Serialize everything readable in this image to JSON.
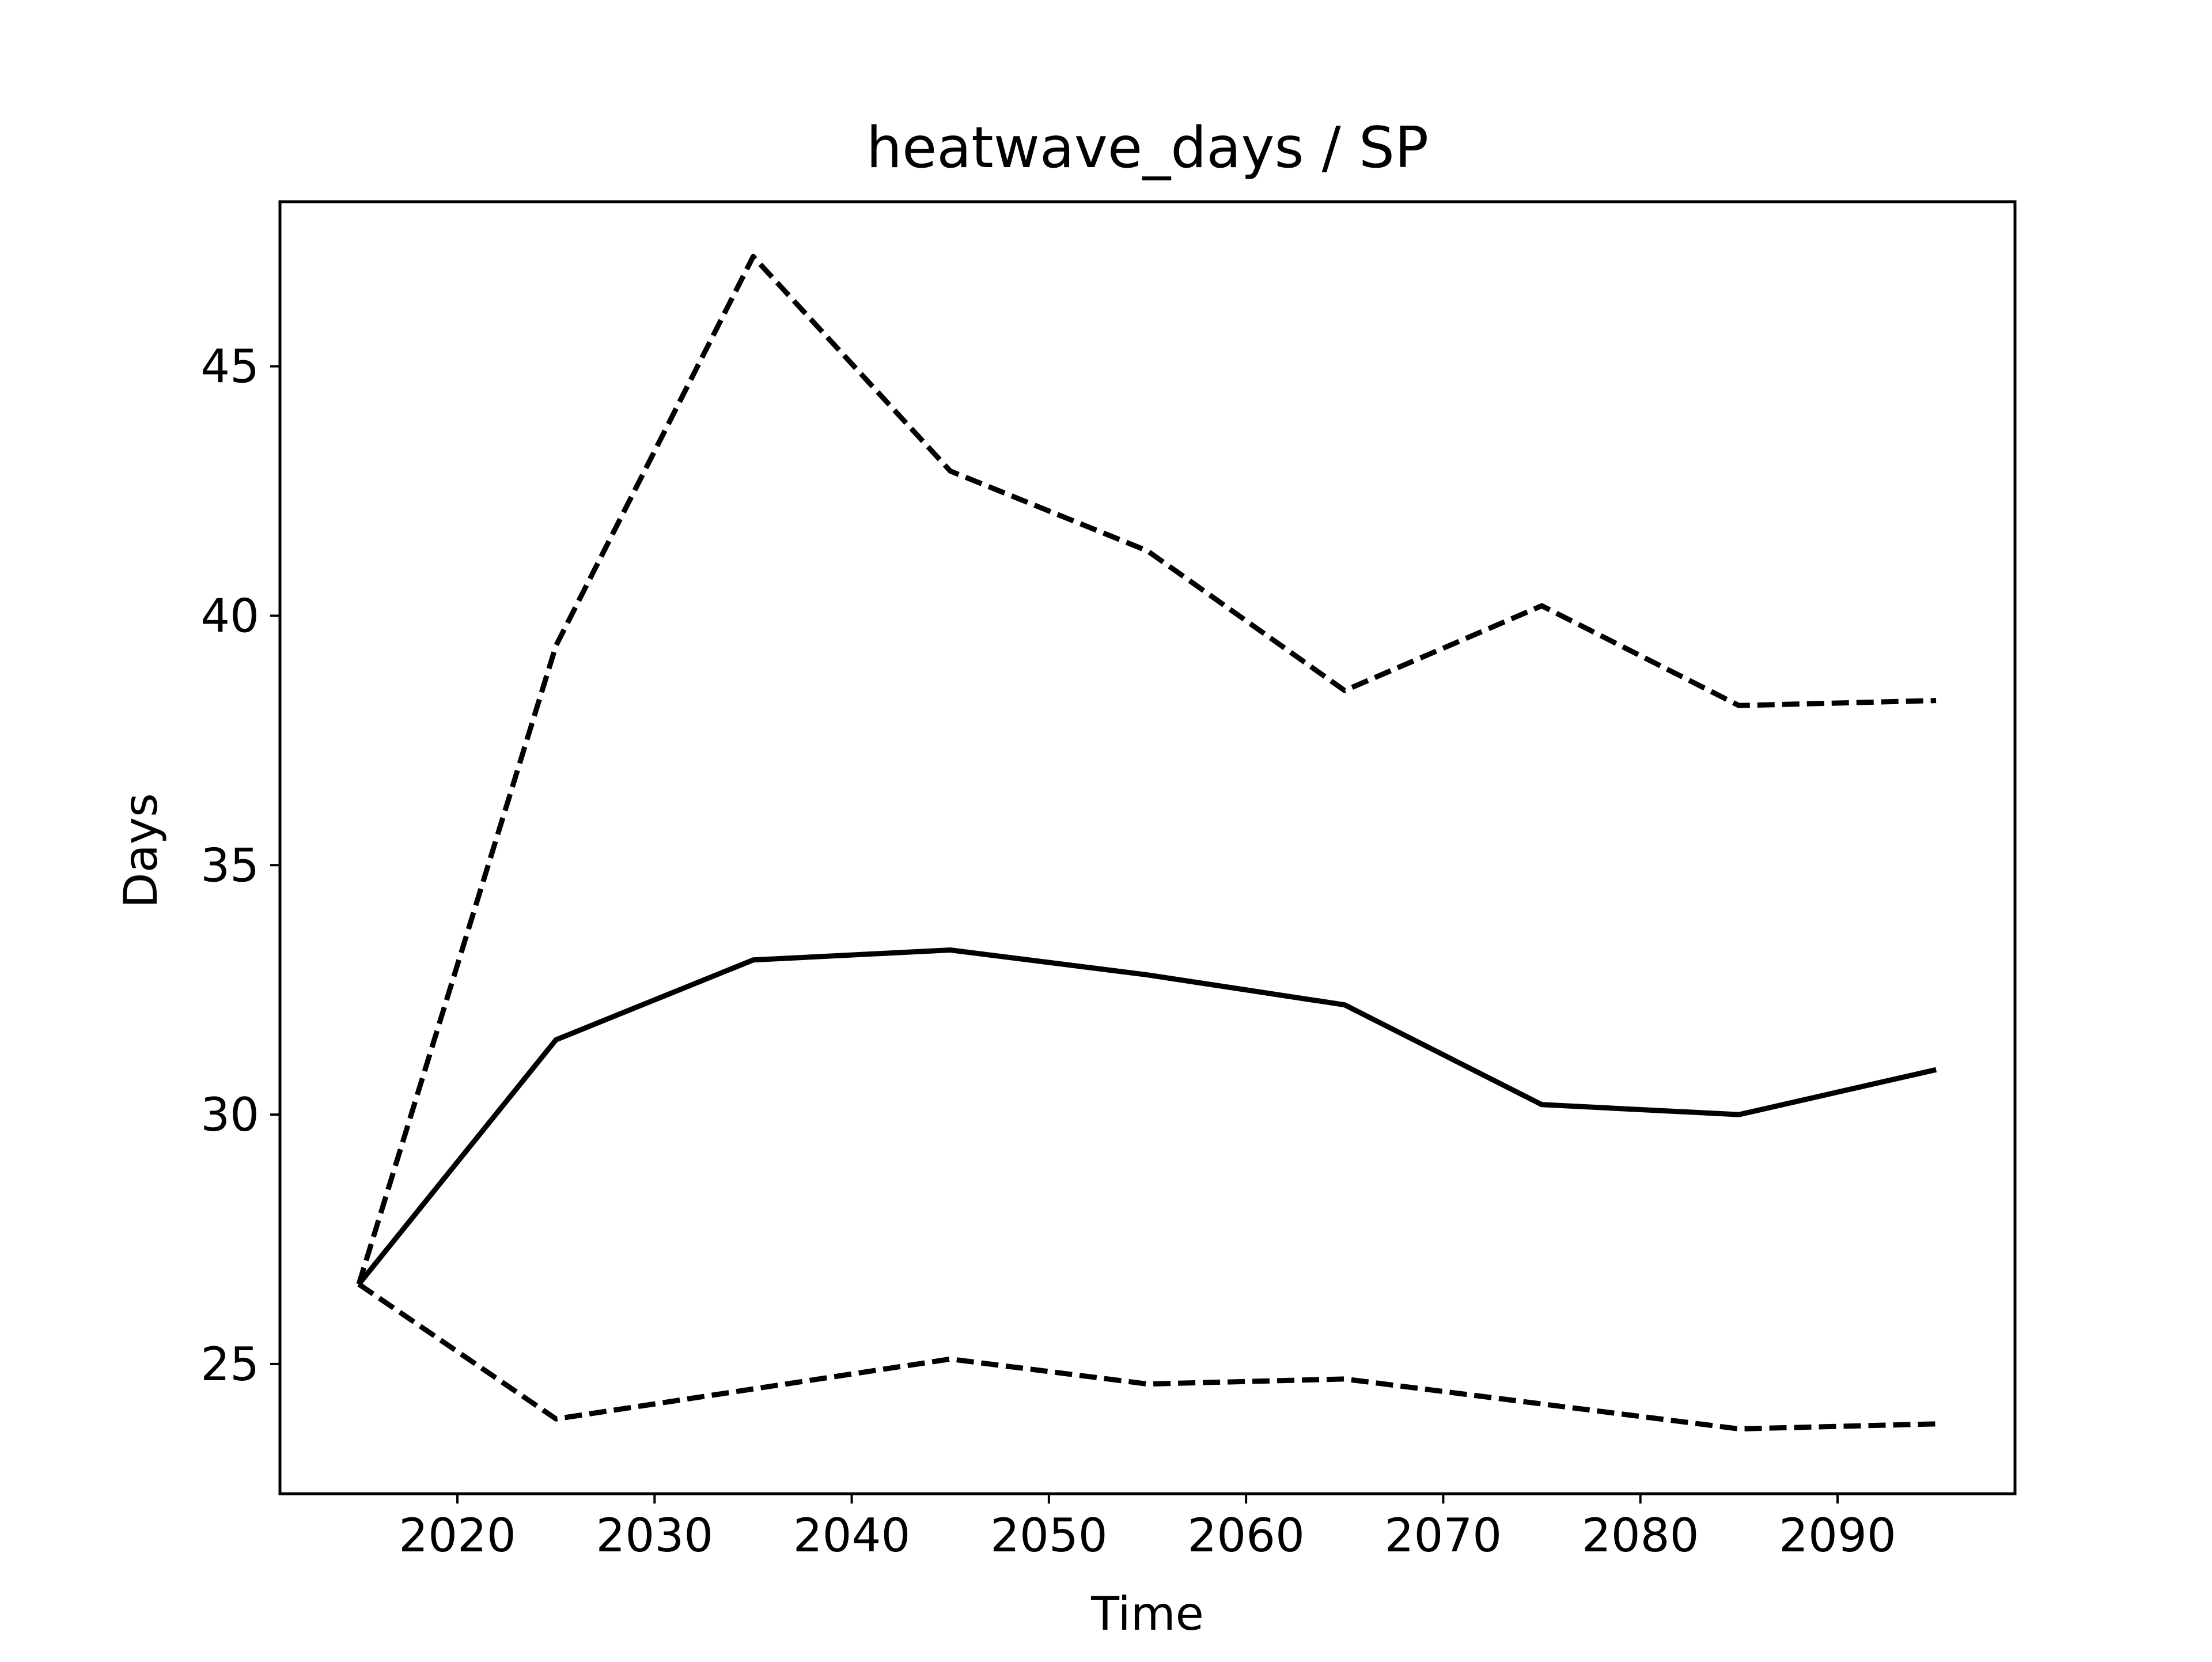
{
  "chart_data": {
    "type": "line",
    "title": "heatwave_days / SP",
    "xlabel": "Time",
    "ylabel": "Days",
    "xlim": [
      2011,
      2099
    ],
    "ylim": [
      22.4,
      48.3
    ],
    "x_ticks": [
      2020,
      2030,
      2040,
      2050,
      2060,
      2070,
      2080,
      2090
    ],
    "y_ticks": [
      25,
      30,
      35,
      40,
      45
    ],
    "x": [
      2015,
      2025,
      2035,
      2045,
      2055,
      2065,
      2075,
      2085,
      2095
    ],
    "series": [
      {
        "style": "dashed",
        "color": "#000000",
        "values": [
          26.6,
          39.4,
          47.2,
          42.9,
          41.3,
          38.5,
          40.2,
          38.2,
          38.3
        ]
      },
      {
        "style": "solid",
        "color": "#000000",
        "values": [
          26.6,
          31.5,
          33.1,
          33.3,
          32.8,
          32.2,
          30.2,
          30.0,
          30.9
        ]
      },
      {
        "style": "dashed",
        "color": "#000000",
        "values": [
          26.6,
          23.9,
          24.5,
          25.1,
          24.6,
          24.7,
          24.2,
          23.7,
          23.8
        ]
      }
    ],
    "grid": false,
    "legend": "none"
  }
}
